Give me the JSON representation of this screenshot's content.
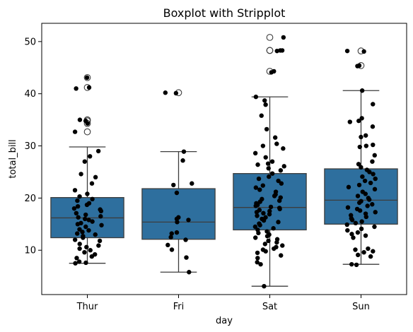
{
  "chart_data": {
    "type": "box",
    "title": "Boxplot with Stripplot",
    "xlabel": "day",
    "ylabel": "total_bill",
    "categories": [
      "Thur",
      "Fri",
      "Sat",
      "Sun"
    ],
    "ylim": [
      1.5,
      53.5
    ],
    "yticks": [
      10,
      20,
      30,
      40,
      50
    ],
    "box_color": "#2e6f9e",
    "point_color": "#000000",
    "boxes": [
      {
        "category": "Thur",
        "q1": 12.4,
        "median": 16.2,
        "q3": 20.1,
        "whisker_low": 7.5,
        "whisker_high": 29.8,
        "outliers": [
          32.7,
          34.3,
          34.8,
          35.0,
          41.2,
          43.1
        ]
      },
      {
        "category": "Fri",
        "q1": 12.1,
        "median": 15.4,
        "q3": 21.8,
        "whisker_low": 5.8,
        "whisker_high": 28.9,
        "outliers": [
          40.2
        ]
      },
      {
        "category": "Sat",
        "q1": 13.9,
        "median": 18.2,
        "q3": 24.7,
        "whisker_low": 3.1,
        "whisker_high": 39.4,
        "outliers": [
          44.3,
          48.3,
          48.3,
          50.8
        ]
      },
      {
        "category": "Sun",
        "q1": 15.0,
        "median": 19.6,
        "q3": 25.6,
        "whisker_low": 7.3,
        "whisker_high": 40.6,
        "outliers": [
          45.4,
          48.2
        ]
      }
    ],
    "strip": [
      {
        "category": "Thur",
        "values": [
          43.1,
          41.2,
          41.0,
          35.0,
          34.8,
          34.3,
          32.7,
          29.0,
          28.0,
          27.0,
          24.6,
          24.0,
          22.8,
          21.5,
          20.8,
          20.3,
          19.8,
          19.5,
          19.0,
          18.7,
          18.4,
          18.0,
          17.8,
          17.5,
          17.1,
          16.8,
          16.5,
          16.3,
          16.0,
          15.8,
          15.5,
          15.2,
          15.0,
          14.8,
          14.5,
          14.0,
          13.8,
          13.5,
          13.2,
          13.0,
          12.7,
          12.4,
          12.0,
          11.8,
          11.2,
          10.9,
          10.6,
          10.3,
          10.0,
          9.6,
          9.2,
          8.8,
          8.5,
          7.8,
          7.6,
          7.5
        ]
      },
      {
        "category": "Fri",
        "values": [
          40.2,
          40.1,
          28.9,
          27.2,
          22.8,
          22.5,
          21.0,
          16.3,
          16.0,
          15.8,
          15.4,
          13.4,
          13.2,
          12.5,
          12.0,
          11.0,
          10.1,
          8.6,
          5.8
        ]
      },
      {
        "category": "Sat",
        "values": [
          50.8,
          48.3,
          48.3,
          48.2,
          44.3,
          44.1,
          39.4,
          38.7,
          37.9,
          35.8,
          33.2,
          31.6,
          30.4,
          30.0,
          29.5,
          28.6,
          27.8,
          27.0,
          26.6,
          26.4,
          26.1,
          25.7,
          25.3,
          24.7,
          24.1,
          23.7,
          23.3,
          22.8,
          22.4,
          22.0,
          21.6,
          21.2,
          20.7,
          20.4,
          20.1,
          19.8,
          19.5,
          19.3,
          19.0,
          18.7,
          18.5,
          18.3,
          18.1,
          17.9,
          17.7,
          17.5,
          17.3,
          17.1,
          16.9,
          16.6,
          16.3,
          16.0,
          15.7,
          15.4,
          15.1,
          14.8,
          14.5,
          14.2,
          13.9,
          13.6,
          13.3,
          13.0,
          12.7,
          12.4,
          12.1,
          11.8,
          11.5,
          11.2,
          10.9,
          10.6,
          10.3,
          10.1,
          9.8,
          9.5,
          9.0,
          8.5,
          7.7,
          7.3,
          3.1
        ]
      },
      {
        "category": "Sun",
        "values": [
          48.2,
          48.1,
          45.4,
          45.3,
          40.6,
          38.0,
          35.3,
          34.8,
          34.6,
          33.7,
          32.0,
          31.7,
          30.2,
          30.0,
          29.8,
          28.2,
          27.0,
          26.5,
          25.9,
          25.4,
          25.0,
          24.6,
          24.1,
          23.7,
          23.3,
          22.9,
          22.5,
          22.1,
          21.7,
          21.2,
          20.8,
          20.4,
          20.0,
          19.7,
          19.4,
          19.1,
          18.8,
          18.5,
          18.2,
          17.9,
          17.6,
          17.3,
          17.0,
          16.7,
          16.4,
          16.1,
          15.8,
          15.5,
          15.2,
          14.9,
          14.5,
          14.1,
          13.8,
          13.4,
          13.1,
          12.8,
          12.4,
          10.3,
          10.1,
          9.8,
          9.6,
          9.1,
          8.8,
          7.3,
          7.2
        ]
      }
    ]
  }
}
